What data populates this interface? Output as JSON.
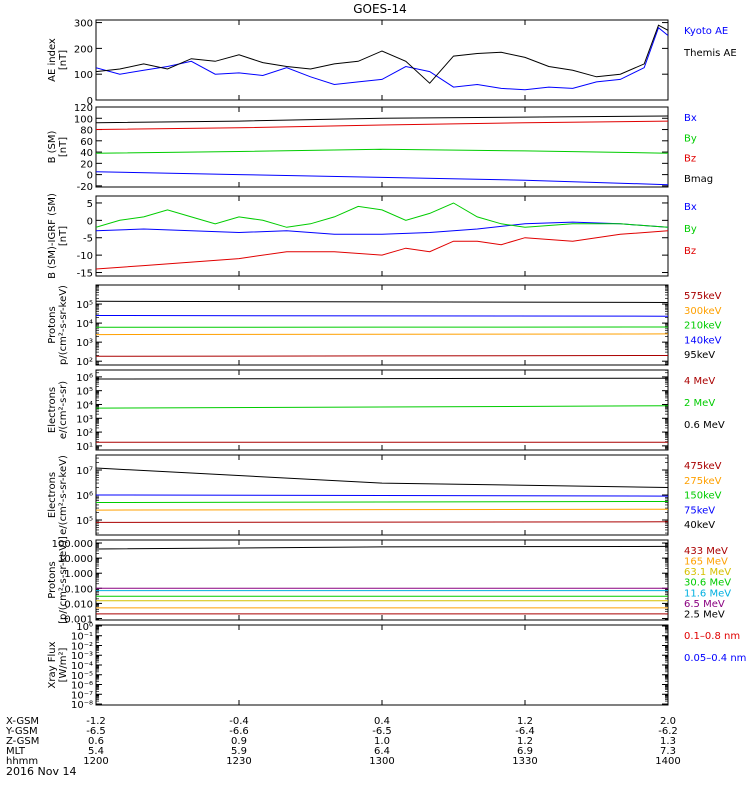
{
  "title": "GOES-14",
  "date": "2016 Nov 14",
  "colors": {
    "black": "#000000",
    "blue": "#0000ff",
    "red": "#e00000",
    "dark_red": "#aa0000",
    "green": "#00cc00",
    "orange": "#ffa000",
    "gold": "#d6c000",
    "cyan": "#00b0e0",
    "purple": "#8a0080",
    "x_green": "#00aa00"
  },
  "chart_data": [
    {
      "id": "ae",
      "type": "line",
      "ylabel": [
        "AE index",
        "[nT]"
      ],
      "ylim": [
        0,
        310
      ],
      "yticks": [
        0,
        100,
        200,
        300
      ],
      "tick_labels": [
        "0",
        "100",
        "200",
        "300"
      ],
      "log": false,
      "legend": [
        {
          "label": "Kyoto AE",
          "color": "blue"
        },
        {
          "label": "Themis AE",
          "color": "black"
        }
      ],
      "series": [
        {
          "name": "Kyoto AE",
          "color": "blue",
          "x": [
            1200,
            1205,
            1210,
            1215,
            1220,
            1225,
            1230,
            1235,
            1240,
            1245,
            1250,
            1255,
            1300,
            1305,
            1310,
            1315,
            1320,
            1325,
            1330,
            1335,
            1340,
            1345,
            1350,
            1355,
            1358,
            1400
          ],
          "y": [
            125,
            100,
            115,
            130,
            150,
            100,
            105,
            95,
            125,
            90,
            60,
            70,
            80,
            130,
            110,
            50,
            60,
            45,
            40,
            50,
            45,
            70,
            80,
            125,
            280,
            250
          ]
        },
        {
          "name": "Themis AE",
          "color": "black",
          "x": [
            1200,
            1205,
            1210,
            1215,
            1220,
            1225,
            1230,
            1235,
            1240,
            1245,
            1250,
            1255,
            1300,
            1305,
            1310,
            1315,
            1320,
            1325,
            1330,
            1335,
            1340,
            1345,
            1350,
            1355,
            1358,
            1400
          ],
          "y": [
            110,
            120,
            140,
            120,
            160,
            150,
            175,
            145,
            130,
            120,
            140,
            150,
            190,
            150,
            65,
            170,
            180,
            185,
            165,
            130,
            115,
            90,
            100,
            140,
            290,
            270
          ]
        }
      ]
    },
    {
      "id": "b",
      "type": "line",
      "ylabel": [
        "B (SM)",
        "[nT]"
      ],
      "ylim": [
        -22,
        120
      ],
      "yticks": [
        -20,
        0,
        20,
        40,
        60,
        80,
        100,
        120
      ],
      "tick_labels": [
        "-20",
        "0",
        "20",
        "40",
        "60",
        "80",
        "100",
        "120"
      ],
      "log": false,
      "legend": [
        {
          "label": "Bx",
          "color": "blue"
        },
        {
          "label": "By",
          "color": "green"
        },
        {
          "label": "Bz",
          "color": "red"
        },
        {
          "label": "Bmag",
          "color": "black"
        }
      ],
      "series": [
        {
          "name": "Bx",
          "color": "blue",
          "x": [
            1200,
            1230,
            1300,
            1330,
            1400
          ],
          "y": [
            5,
            0,
            -5,
            -10,
            -18
          ]
        },
        {
          "name": "By",
          "color": "green",
          "x": [
            1200,
            1230,
            1300,
            1330,
            1400
          ],
          "y": [
            38,
            41,
            45,
            42,
            38
          ]
        },
        {
          "name": "Bz",
          "color": "red",
          "x": [
            1200,
            1230,
            1300,
            1330,
            1400
          ],
          "y": [
            80,
            83,
            88,
            92,
            95
          ]
        },
        {
          "name": "Bmag",
          "color": "black",
          "x": [
            1200,
            1230,
            1300,
            1330,
            1400
          ],
          "y": [
            92,
            95,
            100,
            102,
            104
          ]
        }
      ]
    },
    {
      "id": "dbigrf",
      "type": "line",
      "ylabel": [
        "B (SM)-IGRF (SM)",
        "[nT]"
      ],
      "ylim": [
        -16,
        7
      ],
      "yticks": [
        -15,
        -10,
        -5,
        0,
        5
      ],
      "tick_labels": [
        "-15",
        "-10",
        "-5",
        "0",
        "5"
      ],
      "log": false,
      "legend": [
        {
          "label": "Bx",
          "color": "blue"
        },
        {
          "label": "By",
          "color": "green"
        },
        {
          "label": "Bz",
          "color": "red"
        }
      ],
      "series": [
        {
          "name": "Bx",
          "color": "blue",
          "x": [
            1200,
            1210,
            1220,
            1230,
            1240,
            1250,
            1300,
            1310,
            1320,
            1330,
            1340,
            1350,
            1400
          ],
          "y": [
            -3,
            -2.5,
            -3,
            -3.5,
            -3,
            -4,
            -4,
            -3.5,
            -2.5,
            -1,
            -0.5,
            -1,
            -2
          ]
        },
        {
          "name": "By",
          "color": "green",
          "x": [
            1200,
            1205,
            1210,
            1215,
            1220,
            1225,
            1230,
            1235,
            1240,
            1245,
            1250,
            1255,
            1300,
            1305,
            1310,
            1315,
            1320,
            1325,
            1330,
            1340,
            1350,
            1400
          ],
          "y": [
            -2,
            0,
            1,
            3,
            1,
            -1,
            1,
            0,
            -2,
            -1,
            1,
            4,
            3,
            0,
            2,
            5,
            1,
            -1,
            -2,
            -1,
            -1,
            -2
          ]
        },
        {
          "name": "Bz",
          "color": "red",
          "x": [
            1200,
            1210,
            1220,
            1230,
            1240,
            1250,
            1300,
            1305,
            1310,
            1315,
            1320,
            1325,
            1330,
            1340,
            1350,
            1400
          ],
          "y": [
            -14,
            -13,
            -12,
            -11,
            -9,
            -9,
            -10,
            -8,
            -9,
            -6,
            -6,
            -7,
            -5,
            -6,
            -4,
            -3
          ]
        }
      ]
    },
    {
      "id": "protons_mid",
      "type": "line",
      "ylabel": [
        "Protons",
        "p/(cm²-s-sr-keV)"
      ],
      "ylim_log": [
        1.8,
        6
      ],
      "yticks": [
        2,
        3,
        4,
        5
      ],
      "tick_labels": [
        "10²",
        "10³",
        "10⁴",
        "10⁵"
      ],
      "log": true,
      "legend": [
        {
          "label": "575keV",
          "color": "dark_red"
        },
        {
          "label": "300keV",
          "color": "orange"
        },
        {
          "label": "210keV",
          "color": "green"
        },
        {
          "label": "140keV",
          "color": "blue"
        },
        {
          "label": "95keV",
          "color": "black"
        }
      ],
      "series": [
        {
          "name": "575keV",
          "color": "dark_red",
          "x": [
            1200,
            1400
          ],
          "y": [
            180,
            200
          ]
        },
        {
          "name": "300keV",
          "color": "orange",
          "x": [
            1200,
            1400
          ],
          "y": [
            2500,
            2700
          ]
        },
        {
          "name": "210keV",
          "color": "green",
          "x": [
            1200,
            1400
          ],
          "y": [
            6000,
            6200
          ]
        },
        {
          "name": "140keV",
          "color": "blue",
          "x": [
            1200,
            1400
          ],
          "y": [
            25000,
            23000
          ]
        },
        {
          "name": "95keV",
          "color": "black",
          "x": [
            1200,
            1400
          ],
          "y": [
            140000,
            120000
          ]
        }
      ]
    },
    {
      "id": "electrons_high",
      "type": "line",
      "ylabel": [
        "Electrons",
        "e/(cm²-s-sr)"
      ],
      "ylim_log": [
        0.7,
        6.5
      ],
      "yticks": [
        1,
        2,
        3,
        4,
        5,
        6
      ],
      "tick_labels": [
        "10¹",
        "10²",
        "10³",
        "10⁴",
        "10⁵",
        "10⁶"
      ],
      "log": true,
      "legend": [
        {
          "label": "4 MeV",
          "color": "dark_red"
        },
        {
          "label": "2 MeV",
          "color": "green"
        },
        {
          "label": "0.6 MeV",
          "color": "black"
        }
      ],
      "series": [
        {
          "name": "4 MeV",
          "color": "dark_red",
          "x": [
            1200,
            1400
          ],
          "y": [
            18,
            18
          ]
        },
        {
          "name": "2 MeV",
          "color": "green",
          "x": [
            1200,
            1400
          ],
          "y": [
            5500,
            8000
          ]
        },
        {
          "name": "0.6 MeV",
          "color": "black",
          "x": [
            1200,
            1400
          ],
          "y": [
            700000,
            800000
          ]
        }
      ]
    },
    {
      "id": "electrons_mid",
      "type": "line",
      "ylabel": [
        "Electrons",
        "e/(cm²-s-sr-keV)"
      ],
      "ylim_log": [
        4.4,
        7.6
      ],
      "yticks": [
        5,
        6,
        7
      ],
      "tick_labels": [
        "10⁵",
        "10⁶",
        "10⁷"
      ],
      "log": true,
      "legend": [
        {
          "label": "475keV",
          "color": "dark_red"
        },
        {
          "label": "275keV",
          "color": "orange"
        },
        {
          "label": "150keV",
          "color": "green"
        },
        {
          "label": "75keV",
          "color": "blue"
        },
        {
          "label": "40keV",
          "color": "black"
        }
      ],
      "series": [
        {
          "name": "475keV",
          "color": "dark_red",
          "x": [
            1200,
            1400
          ],
          "y": [
            80000,
            85000
          ]
        },
        {
          "name": "275keV",
          "color": "orange",
          "x": [
            1200,
            1400
          ],
          "y": [
            250000,
            270000
          ]
        },
        {
          "name": "150keV",
          "color": "green",
          "x": [
            1200,
            1400
          ],
          "y": [
            500000,
            550000
          ]
        },
        {
          "name": "75keV",
          "color": "blue",
          "x": [
            1200,
            1400
          ],
          "y": [
            1000000,
            900000
          ]
        },
        {
          "name": "40keV",
          "color": "black",
          "x": [
            1200,
            1300,
            1400
          ],
          "y": [
            12000000,
            3000000,
            2000000
          ]
        }
      ]
    },
    {
      "id": "protons_high",
      "type": "line",
      "ylabel": [
        "Protons",
        "[p/(cm²-s-sr-keV)]"
      ],
      "ylim_log": [
        -3.1,
        2.2
      ],
      "yticks": [
        -3,
        -2,
        -1,
        0,
        1,
        2
      ],
      "tick_labels": [
        "0.001",
        "0.010",
        "0.100",
        "1.000",
        "10.000",
        "100.000"
      ],
      "log": true,
      "legend": [
        {
          "label": "433 MeV",
          "color": "dark_red"
        },
        {
          "label": "165 MeV",
          "color": "orange"
        },
        {
          "label": "63.1 MeV",
          "color": "gold"
        },
        {
          "label": "30.6 MeV",
          "color": "green"
        },
        {
          "label": "11.6 MeV",
          "color": "cyan"
        },
        {
          "label": "6.5 MeV",
          "color": "purple"
        },
        {
          "label": "2.5 MeV",
          "color": "black"
        }
      ],
      "series": [
        {
          "name": "433 MeV",
          "color": "dark_red",
          "x": [
            1200,
            1400
          ],
          "y": [
            0.002,
            0.002
          ]
        },
        {
          "name": "165 MeV",
          "color": "orange",
          "x": [
            1200,
            1400
          ],
          "y": [
            0.005,
            0.005
          ]
        },
        {
          "name": "63.1 MeV",
          "color": "gold",
          "x": [
            1200,
            1400
          ],
          "y": [
            0.015,
            0.015
          ]
        },
        {
          "name": "30.6 MeV",
          "color": "green",
          "x": [
            1200,
            1400
          ],
          "y": [
            0.03,
            0.03
          ]
        },
        {
          "name": "11.6 MeV",
          "color": "cyan",
          "x": [
            1200,
            1400
          ],
          "y": [
            0.07,
            0.07
          ]
        },
        {
          "name": "6.5 MeV",
          "color": "purple",
          "x": [
            1200,
            1400
          ],
          "y": [
            0.1,
            0.1
          ]
        },
        {
          "name": "2.5 MeV",
          "color": "black",
          "x": [
            1200,
            1300,
            1400
          ],
          "y": [
            40,
            55,
            60
          ]
        }
      ]
    },
    {
      "id": "xray",
      "type": "line",
      "ylabel": [
        "Xray Flux",
        "[W/m²]"
      ],
      "ylim_log": [
        -8.1,
        0.1
      ],
      "yticks": [
        -8,
        -7,
        -6,
        -5,
        -4,
        -3,
        -2,
        -1,
        0
      ],
      "tick_labels": [
        "10⁻⁸",
        "10⁻⁷",
        "10⁻⁶",
        "10⁻⁵",
        "10⁻⁴",
        "10⁻³",
        "10⁻²",
        "10⁻¹",
        "10⁰"
      ],
      "log": true,
      "legend": [
        {
          "label": "0.1–0.8 nm",
          "color": "red"
        },
        {
          "label": "0.05–0.4 nm",
          "color": "blue"
        }
      ],
      "series": []
    }
  ],
  "x_axis": {
    "rows": [
      {
        "label": "X-GSM",
        "values": [
          "-1.2",
          "-0.4",
          "0.4",
          "1.2",
          "2.0"
        ]
      },
      {
        "label": "Y-GSM",
        "values": [
          "-6.5",
          "-6.6",
          "-6.5",
          "-6.4",
          "-6.2"
        ]
      },
      {
        "label": "Z-GSM",
        "values": [
          "0.6",
          "0.9",
          "1.0",
          "1.2",
          "1.3"
        ]
      },
      {
        "label": "MLT",
        "values": [
          "5.4",
          "5.9",
          "6.4",
          "6.9",
          "7.3"
        ]
      },
      {
        "label": "hhmm",
        "values": [
          "1200",
          "1230",
          "1300",
          "1330",
          "1400"
        ]
      }
    ],
    "ticks": [
      1200,
      1230,
      1300,
      1330,
      1400
    ],
    "xlim": [
      1200,
      1400
    ]
  }
}
